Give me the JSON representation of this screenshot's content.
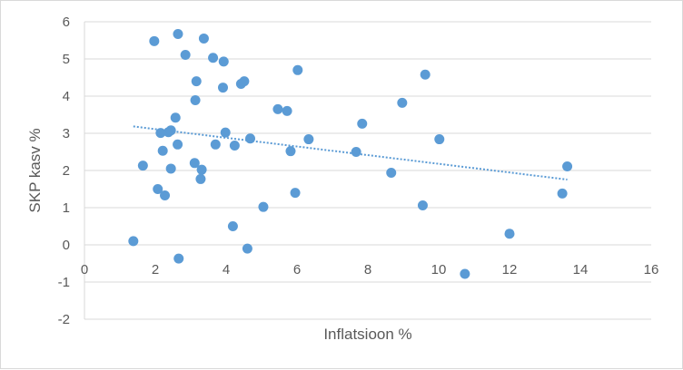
{
  "chart_data": {
    "type": "scatter",
    "xlabel": "Inflatsioon %",
    "ylabel": "SKP kasv %",
    "xlim": [
      0,
      16
    ],
    "ylim": [
      -2,
      6
    ],
    "x_ticks": [
      0,
      2,
      4,
      6,
      8,
      10,
      12,
      14,
      16
    ],
    "y_ticks": [
      -2,
      -1,
      0,
      1,
      2,
      3,
      4,
      5,
      6
    ],
    "x_tick_labels": [
      "0",
      "2",
      "4",
      "6",
      "8",
      "10",
      "12",
      "14",
      "16"
    ],
    "y_tick_labels": [
      "-2",
      "-1",
      "0",
      "1",
      "2",
      "3",
      "4",
      "5",
      "6"
    ],
    "grid": "horizontal",
    "legend": "none",
    "colors": {
      "marker": "#5b9bd5",
      "trendline": "#5b9bd5",
      "grid": "#d9d9d9",
      "text": "#595959"
    },
    "series": [
      {
        "points": [
          [
            1.38,
            0.1
          ],
          [
            1.65,
            2.13
          ],
          [
            1.97,
            5.48
          ],
          [
            2.07,
            1.5
          ],
          [
            2.15,
            3.01
          ],
          [
            2.21,
            2.53
          ],
          [
            2.27,
            1.33
          ],
          [
            2.37,
            3.03
          ],
          [
            2.44,
            3.08
          ],
          [
            2.44,
            2.05
          ],
          [
            2.57,
            3.42
          ],
          [
            2.63,
            2.7
          ],
          [
            2.64,
            5.67
          ],
          [
            2.66,
            -0.37
          ],
          [
            2.85,
            5.11
          ],
          [
            3.11,
            2.2
          ],
          [
            3.13,
            3.89
          ],
          [
            3.16,
            4.4
          ],
          [
            3.28,
            1.77
          ],
          [
            3.31,
            2.02
          ],
          [
            3.37,
            5.55
          ],
          [
            3.63,
            5.03
          ],
          [
            3.7,
            2.7
          ],
          [
            3.91,
            4.23
          ],
          [
            3.93,
            4.93
          ],
          [
            3.98,
            3.02
          ],
          [
            4.19,
            0.5
          ],
          [
            4.24,
            2.67
          ],
          [
            4.42,
            4.33
          ],
          [
            4.51,
            4.4
          ],
          [
            4.6,
            -0.1
          ],
          [
            4.68,
            2.86
          ],
          [
            5.05,
            1.02
          ],
          [
            5.46,
            3.65
          ],
          [
            5.72,
            3.6
          ],
          [
            5.82,
            2.52
          ],
          [
            5.95,
            1.4
          ],
          [
            6.02,
            4.7
          ],
          [
            6.33,
            2.84
          ],
          [
            7.67,
            2.5
          ],
          [
            7.84,
            3.26
          ],
          [
            8.66,
            1.94
          ],
          [
            8.97,
            3.82
          ],
          [
            9.55,
            1.06
          ],
          [
            9.62,
            4.58
          ],
          [
            10.02,
            2.84
          ],
          [
            10.74,
            -0.78
          ],
          [
            12.0,
            0.3
          ],
          [
            13.49,
            1.38
          ],
          [
            13.63,
            2.11
          ]
        ]
      }
    ],
    "trendline": {
      "type": "linear",
      "style": "dotted",
      "x_range": [
        1.38,
        13.63
      ]
    }
  }
}
